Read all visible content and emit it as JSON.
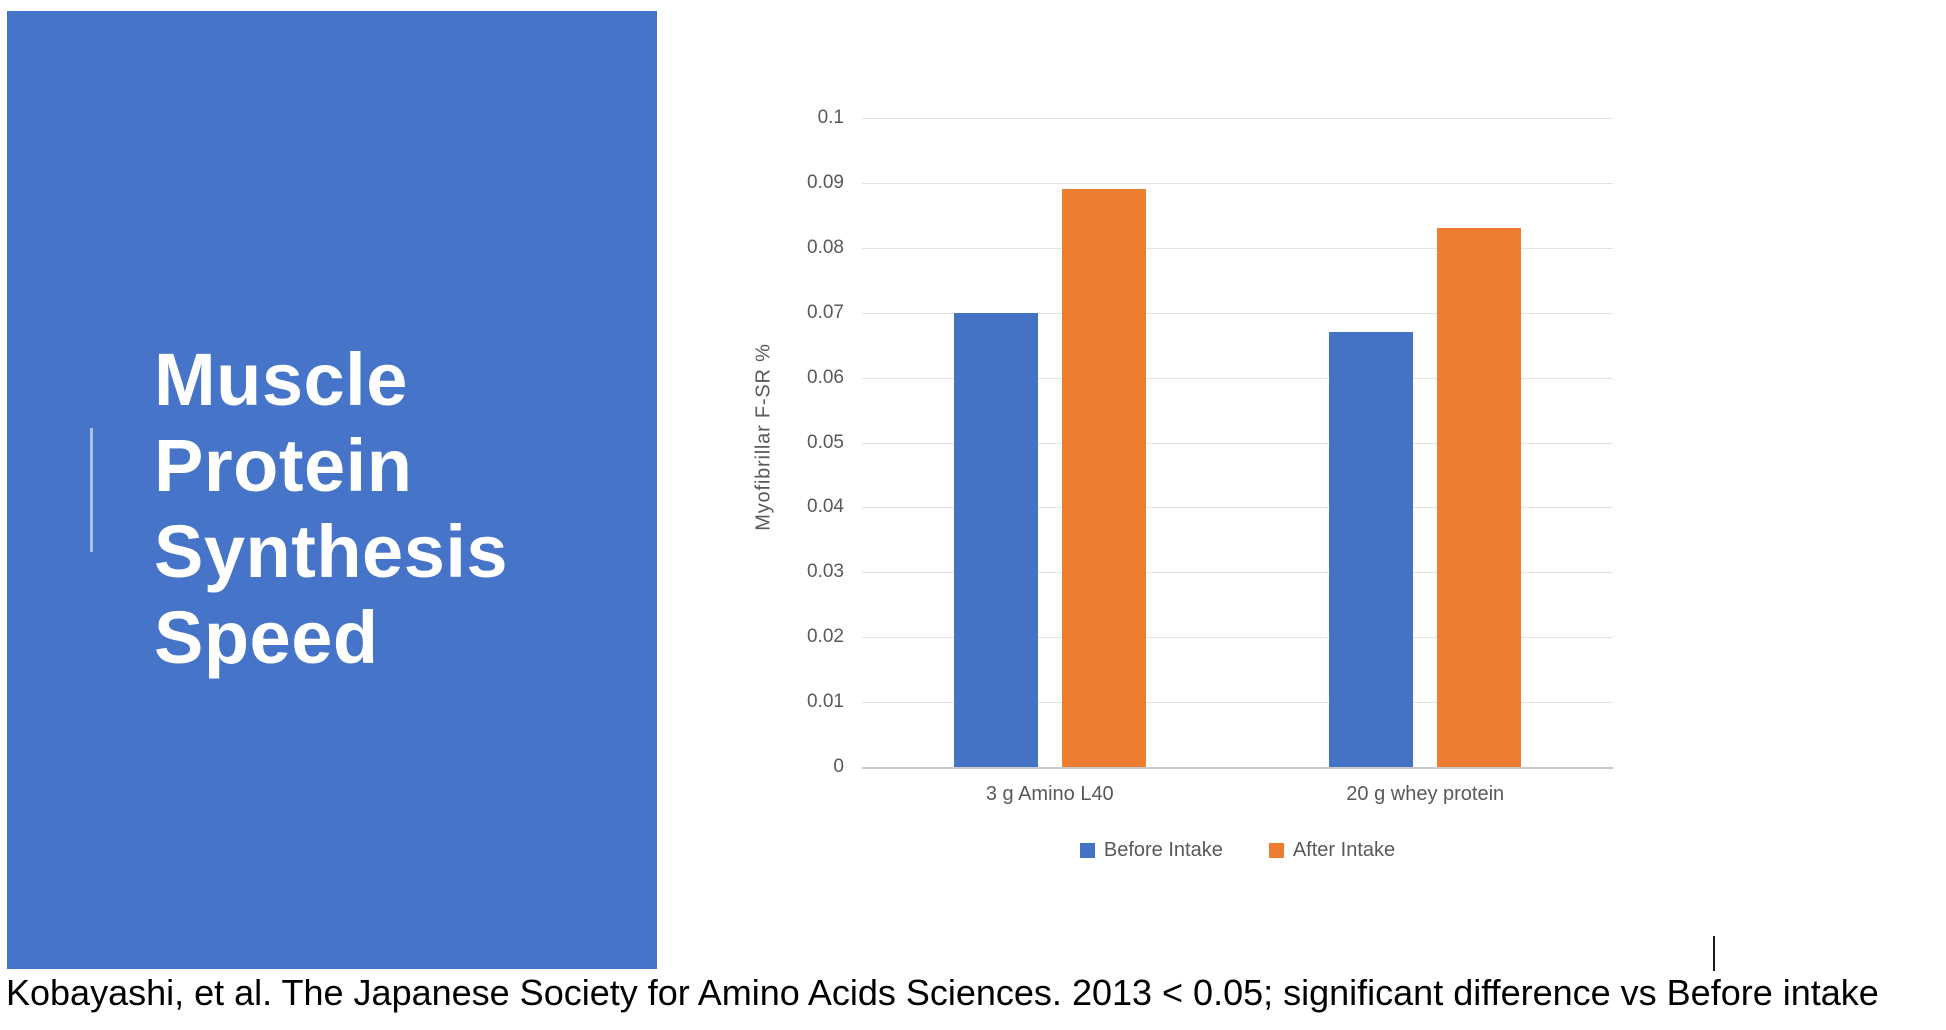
{
  "slide": {
    "title_lines": [
      "Muscle",
      "Protein",
      "Synthesis",
      "Speed"
    ],
    "panel_color": "#4674C8"
  },
  "chart_data": {
    "type": "bar",
    "title": "",
    "xlabel": "",
    "ylabel": "Myofibrillar F-SR %",
    "categories": [
      "3 g Amino L40",
      "20 g whey protein"
    ],
    "series": [
      {
        "name": "Before Intake",
        "color": "#4472C4",
        "values": [
          0.07,
          0.067
        ]
      },
      {
        "name": "After Intake",
        "color": "#ED7D31",
        "values": [
          0.089,
          0.083
        ]
      }
    ],
    "ylim": [
      0,
      0.1
    ],
    "yticks": [
      "0.1",
      "0.09",
      "0.08",
      "0.07",
      "0.06",
      "0.05",
      "0.04",
      "0.03",
      "0.02",
      "0.01",
      "0"
    ],
    "grid": true,
    "legend_position": "bottom"
  },
  "caption": {
    "text": "Kobayashi, et al. The Japanese Society for Amino Acids Sciences. 2013 < 0.05; significant difference vs Before intake"
  },
  "colors": {
    "grid": "#e3e3e3",
    "axis_line": "#c9c9c9",
    "tick_text": "#595959",
    "caption_text": "#000000"
  }
}
